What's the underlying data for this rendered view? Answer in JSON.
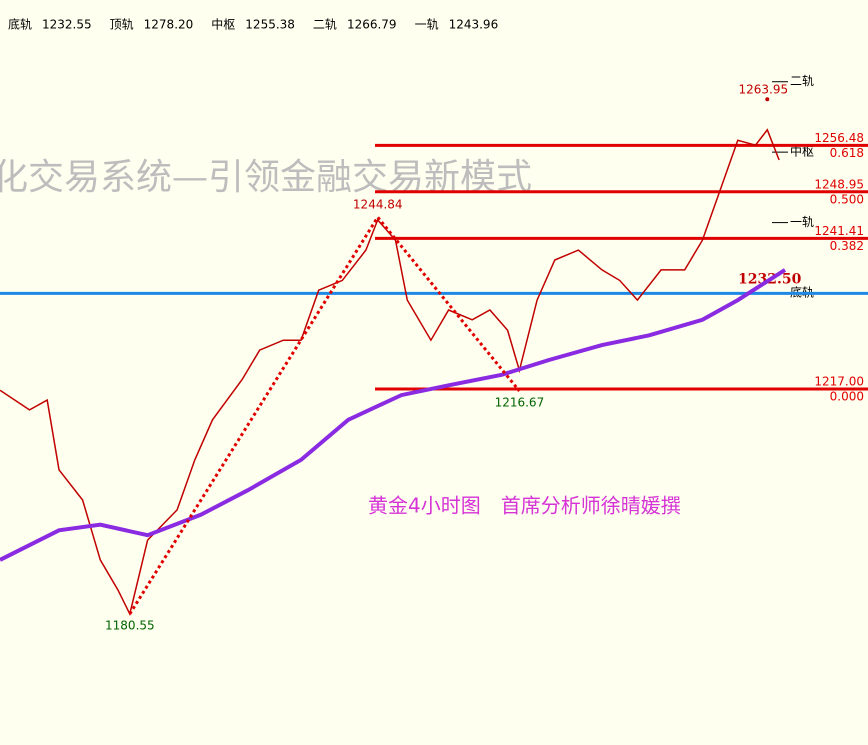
{
  "chart_data": {
    "type": "line",
    "header": [
      {
        "name": "底轨",
        "value": 1232.55
      },
      {
        "name": "顶轨",
        "value": 1278.2,
        "value_label": "1278.20"
      },
      {
        "name": "中枢",
        "value": 1255.38
      },
      {
        "name": "二轨",
        "value": 1266.79
      },
      {
        "name": "一轨",
        "value": 1243.96
      }
    ],
    "watermark": "化交易系统—引领金融交易新模式",
    "annotation": "黄金4小时图　首席分析师徐晴媛撰",
    "xlim": [
      0,
      133
    ],
    "ylim": [
      1159.3,
      1274.2
    ],
    "series": [
      {
        "color": "#c00000",
        "x": [
          0,
          5,
          8,
          10,
          14,
          17,
          20,
          22,
          25,
          30,
          33,
          36,
          41,
          44,
          48,
          51,
          54,
          58,
          62,
          64,
          67,
          69,
          73,
          76,
          80,
          83,
          86,
          88,
          91,
          94,
          98,
          102,
          105,
          108,
          112,
          116,
          119,
          122,
          125,
          128,
          130,
          132
        ],
        "values": [
          1216.8,
          1213.6,
          1215.2,
          1203.9,
          1199,
          1189.3,
          1184.4,
          1180.55,
          1192.5,
          1197.4,
          1205.5,
          1212,
          1218.5,
          1223.3,
          1224.9,
          1224.9,
          1233,
          1234.6,
          1239.5,
          1244.4,
          1241.1,
          1231.4,
          1224.9,
          1229.8,
          1228.2,
          1229.8,
          1226.5,
          1220,
          1231.4,
          1237.9,
          1239.5,
          1236.3,
          1234.6,
          1231.4,
          1236.3,
          1236.3,
          1241.1,
          1249.2,
          1257.3,
          1256.5,
          1259,
          1254.1
        ]
      },
      {
        "color": "#8a2be2",
        "x": [
          0,
          10,
          17,
          25,
          34,
          42,
          51,
          59,
          68,
          76,
          85,
          93,
          102,
          110,
          119,
          125,
          133
        ],
        "values": [
          1189.3,
          1194.1,
          1195,
          1193.3,
          1196.6,
          1200.6,
          1205.5,
          1212,
          1216,
          1217.6,
          1219.3,
          1221.7,
          1224.1,
          1225.7,
          1228.2,
          1231.4,
          1236.3
        ]
      }
    ],
    "zigzag": {
      "color": "#e00000",
      "x": [
        22,
        64,
        88
      ],
      "values": [
        1180.55,
        1244.84,
        1216.67
      ]
    },
    "peak": {
      "x": 130,
      "value": 1263.95
    },
    "levels": [
      {
        "value": 1256.48,
        "ratio": "0.618"
      },
      {
        "value": 1248.95,
        "ratio": "0.500"
      },
      {
        "value": 1241.41,
        "ratio": "0.382"
      },
      {
        "value": 1217,
        "value_label": "1217.00",
        "ratio": "0.000"
      }
    ],
    "level_color": "#e00000",
    "pivot": {
      "value": 1232.5,
      "value_label": "1232.50",
      "color": "#1e88e5"
    }
  }
}
